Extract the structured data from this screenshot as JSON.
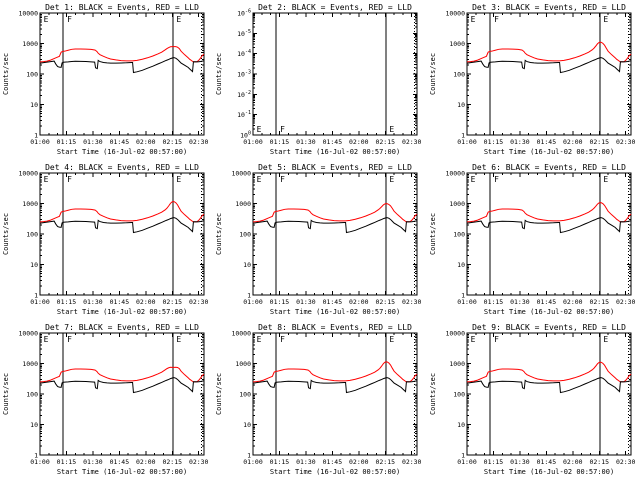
{
  "page": {
    "background": "#ffffff",
    "description": "3x3 grid of detector count rate plots"
  },
  "chart_data": {
    "type": "line",
    "layout": {
      "rows": 3,
      "cols": 3,
      "grid": false,
      "legend_position": "in-title"
    },
    "xlabel": "Start Time (16-Jul-02 00:57:00)",
    "ylabel": "Counts/sec",
    "legend_note": "BLACK = Events, RED = LLD",
    "colors": {
      "events": "#000000",
      "lld": "#ff0000",
      "axis": "#000000",
      "background": "#ffffff"
    },
    "x_tick_labels": [
      "01:00",
      "01:15",
      "01:30",
      "01:45",
      "02:00",
      "02:15",
      "02:30"
    ],
    "x_tick_minutes": [
      0,
      15,
      30,
      45,
      60,
      75,
      90
    ],
    "x_minor_step_minutes": 5,
    "x_range_minutes": [
      0,
      93
    ],
    "ylim_log": [
      1,
      10000
    ],
    "y_tick_labels_data_panels": [
      "1",
      "10",
      "100",
      "1000",
      "10000"
    ],
    "empty_panel_y_ticks": [
      {
        "base": "10",
        "exp": "0"
      },
      {
        "base": "10",
        "exp": "-1"
      },
      {
        "base": "10",
        "exp": "-2"
      },
      {
        "base": "10",
        "exp": "-3"
      },
      {
        "base": "10",
        "exp": "-4"
      },
      {
        "base": "10",
        "exp": "-5"
      },
      {
        "base": "10",
        "exp": "-6"
      }
    ],
    "vlines": {
      "solid_minutes": [
        13,
        75.5
      ],
      "dotted_minutes": [
        91.5
      ]
    },
    "event_letters": [
      {
        "label": "E",
        "t": 1.2
      },
      {
        "label": "F",
        "t": 14.5
      },
      {
        "label": "E",
        "t": 76.5
      }
    ],
    "series_x_minutes": [
      0,
      2,
      4,
      6,
      8,
      9,
      10,
      11,
      12,
      12.5,
      13,
      14,
      16,
      18,
      20,
      23,
      26,
      29,
      31,
      31.5,
      32,
      32.5,
      33,
      34,
      36,
      38,
      40,
      43,
      46,
      49,
      52,
      52.5,
      53,
      55,
      58,
      61,
      64,
      67,
      69,
      71,
      72,
      73,
      74,
      75,
      76,
      77,
      78,
      79,
      80,
      82,
      84,
      85,
      86,
      86.5,
      87,
      88,
      89,
      90,
      91,
      92,
      93
    ],
    "series": [
      {
        "name": "LLD",
        "color": "#ff0000",
        "values": [
          250,
          255,
          265,
          285,
          320,
          340,
          360,
          380,
          520,
          540,
          550,
          560,
          600,
          645,
          660,
          660,
          655,
          640,
          610,
          600,
          560,
          530,
          480,
          430,
          380,
          340,
          310,
          290,
          275,
          270,
          270,
          270,
          272,
          280,
          305,
          340,
          390,
          460,
          520,
          620,
          700,
          820,
          980,
          1090,
          1100,
          1020,
          880,
          700,
          560,
          430,
          340,
          300,
          275,
          260,
          255,
          250,
          255,
          280,
          330,
          400,
          450
        ]
      },
      {
        "name": "Events",
        "color": "#000000",
        "values": [
          225,
          235,
          245,
          255,
          265,
          210,
          175,
          168,
          165,
          230,
          240,
          245,
          250,
          258,
          262,
          260,
          256,
          250,
          245,
          160,
          155,
          150,
          280,
          255,
          238,
          232,
          228,
          228,
          230,
          233,
          238,
          238,
          112,
          118,
          132,
          155,
          180,
          215,
          240,
          270,
          285,
          300,
          320,
          335,
          345,
          330,
          300,
          262,
          228,
          195,
          165,
          145,
          128,
          120,
          250,
          252,
          250,
          253,
          258,
          264,
          272
        ]
      }
    ],
    "panels": [
      {
        "det": 1,
        "title": "Det 1: BLACK = Events, RED = LLD",
        "has_data": true,
        "peak_scale": 0.72,
        "letters_at": "top"
      },
      {
        "det": 2,
        "title": "Det 2: BLACK = Events, RED = LLD",
        "has_data": false,
        "peak_scale": 1.0,
        "letters_at": "bottom"
      },
      {
        "det": 3,
        "title": "Det 3: BLACK = Events, RED = LLD",
        "has_data": true,
        "peak_scale": 1.0,
        "letters_at": "top"
      },
      {
        "det": 4,
        "title": "Det 4: BLACK = Events, RED = LLD",
        "has_data": true,
        "peak_scale": 1.05,
        "letters_at": "top"
      },
      {
        "det": 5,
        "title": "Det 5: BLACK = Events, RED = LLD",
        "has_data": true,
        "peak_scale": 0.9,
        "letters_at": "top"
      },
      {
        "det": 6,
        "title": "Det 6: BLACK = Events, RED = LLD",
        "has_data": true,
        "peak_scale": 0.97,
        "letters_at": "top"
      },
      {
        "det": 7,
        "title": "Det 7: BLACK = Events, RED = LLD",
        "has_data": true,
        "peak_scale": 0.68,
        "letters_at": "top"
      },
      {
        "det": 8,
        "title": "Det 8: BLACK = Events, RED = LLD",
        "has_data": true,
        "peak_scale": 1.03,
        "letters_at": "top"
      },
      {
        "det": 9,
        "title": "Det 9: BLACK = Events, RED = LLD",
        "has_data": true,
        "peak_scale": 1.0,
        "letters_at": "top"
      }
    ]
  }
}
